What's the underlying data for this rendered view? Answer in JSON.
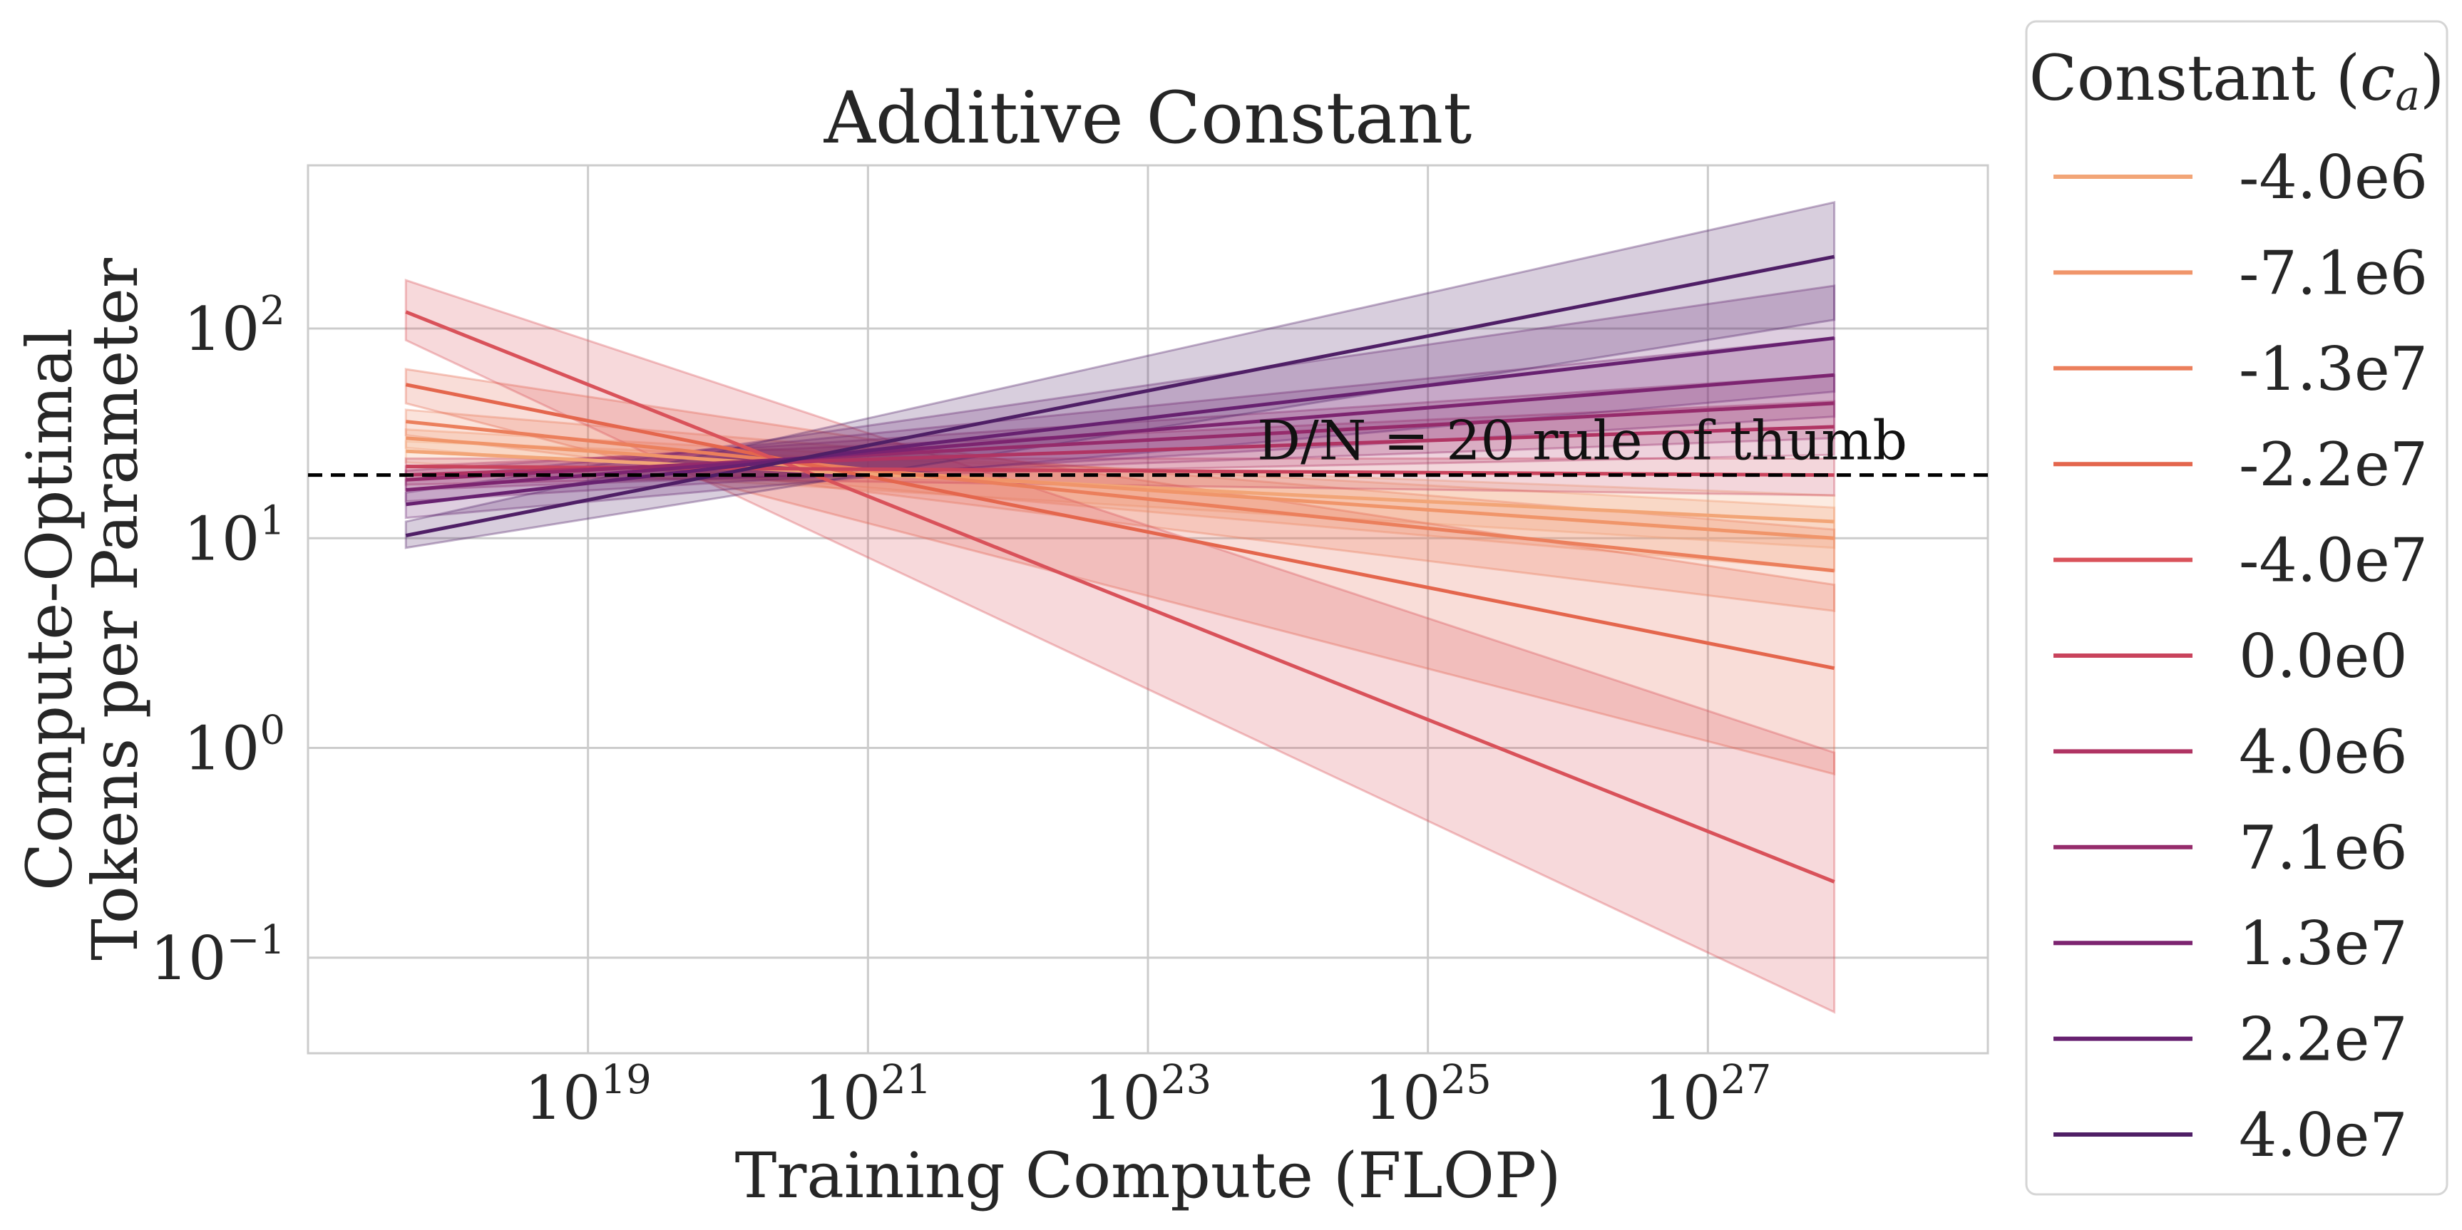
{
  "chart_data": {
    "type": "line",
    "title": "Additive Constant",
    "xlabel": "Training Compute (FLOP)",
    "ylabel_lines": [
      "Compute-Optimal",
      "Tokens per Parameter"
    ],
    "x_scale": "log",
    "y_scale": "log",
    "xlim": [
      1e+17,
      1e+29
    ],
    "ylim": [
      0.035,
      600
    ],
    "x_ticks": [
      1e+19,
      1e+21,
      1e+23,
      1e+25,
      1e+27
    ],
    "x_tick_labels": [
      {
        "base": "10",
        "exp": "19"
      },
      {
        "base": "10",
        "exp": "21"
      },
      {
        "base": "10",
        "exp": "23"
      },
      {
        "base": "10",
        "exp": "25"
      },
      {
        "base": "10",
        "exp": "27"
      }
    ],
    "y_ticks": [
      0.1,
      1,
      10,
      100
    ],
    "y_tick_labels": [
      {
        "base": "10",
        "exp": "−1"
      },
      {
        "base": "10",
        "exp": "0"
      },
      {
        "base": "10",
        "exp": "1"
      },
      {
        "base": "10",
        "exp": "2"
      }
    ],
    "grid": true,
    "reference_line": {
      "y": 20,
      "style": "dashed",
      "color": "#000000"
    },
    "annotation": {
      "text": "D/N = 20 rule of thumb",
      "x": 3e+25,
      "y": 25
    },
    "legend": {
      "title": "Constant (c_a)",
      "title_main": "Constant (",
      "title_var": "c",
      "title_sub": "a",
      "title_end": ")",
      "placement": "outside-right"
    },
    "series": [
      {
        "name": "-4.0e6",
        "color": "#f2a577",
        "x": [
          5e+17,
          8e+27
        ],
        "y": [
          26,
          12
        ],
        "band_low": [
          23,
          9
        ],
        "band_high": [
          29,
          16
        ]
      },
      {
        "name": "-7.1e6",
        "color": "#f0956a",
        "x": [
          5e+17,
          8e+27
        ],
        "y": [
          30,
          10
        ],
        "band_low": [
          27,
          7
        ],
        "band_high": [
          33,
          14
        ]
      },
      {
        "name": "-1.3e7",
        "color": "#eb7f5c",
        "x": [
          5e+17,
          8e+27
        ],
        "y": [
          36,
          7
        ],
        "band_low": [
          31,
          4.5
        ],
        "band_high": [
          41,
          11
        ]
      },
      {
        "name": "-2.2e7",
        "color": "#e4664d",
        "x": [
          5e+17,
          8e+27
        ],
        "y": [
          54,
          2.4
        ],
        "band_low": [
          44,
          0.75
        ],
        "band_high": [
          64,
          6
        ]
      },
      {
        "name": "-4.0e7",
        "color": "#d9525a",
        "x": [
          5e+17,
          8e+27
        ],
        "y": [
          120,
          0.23
        ],
        "band_low": [
          88,
          0.055
        ],
        "band_high": [
          170,
          0.95
        ]
      },
      {
        "name": "0.0e0",
        "color": "#c9435c",
        "x": [
          5e+17,
          8e+27
        ],
        "y": [
          22,
          20
        ],
        "band_low": [
          20,
          16
        ],
        "band_high": [
          24,
          24
        ]
      },
      {
        "name": "4.0e6",
        "color": "#b03463",
        "x": [
          5e+17,
          8e+27
        ],
        "y": [
          20,
          34
        ],
        "band_low": [
          18,
          25
        ],
        "band_high": [
          22,
          45
        ]
      },
      {
        "name": "7.1e6",
        "color": "#952b6b",
        "x": [
          5e+17,
          8e+27
        ],
        "y": [
          19,
          44
        ],
        "band_low": [
          17,
          30
        ],
        "band_high": [
          21,
          60
        ]
      },
      {
        "name": "1.3e7",
        "color": "#7c2470",
        "x": [
          5e+17,
          8e+27
        ],
        "y": [
          17,
          60
        ],
        "band_low": [
          15,
          38
        ],
        "band_high": [
          19,
          90
        ]
      },
      {
        "name": "2.2e7",
        "color": "#672170",
        "x": [
          5e+17,
          8e+27
        ],
        "y": [
          14.5,
          90
        ],
        "band_low": [
          12.5,
          50
        ],
        "band_high": [
          16.5,
          160
        ]
      },
      {
        "name": "4.0e7",
        "color": "#4f1f66",
        "x": [
          5e+17,
          8e+27
        ],
        "y": [
          10.3,
          220
        ],
        "band_low": [
          9,
          110
        ],
        "band_high": [
          12,
          400
        ]
      }
    ]
  }
}
